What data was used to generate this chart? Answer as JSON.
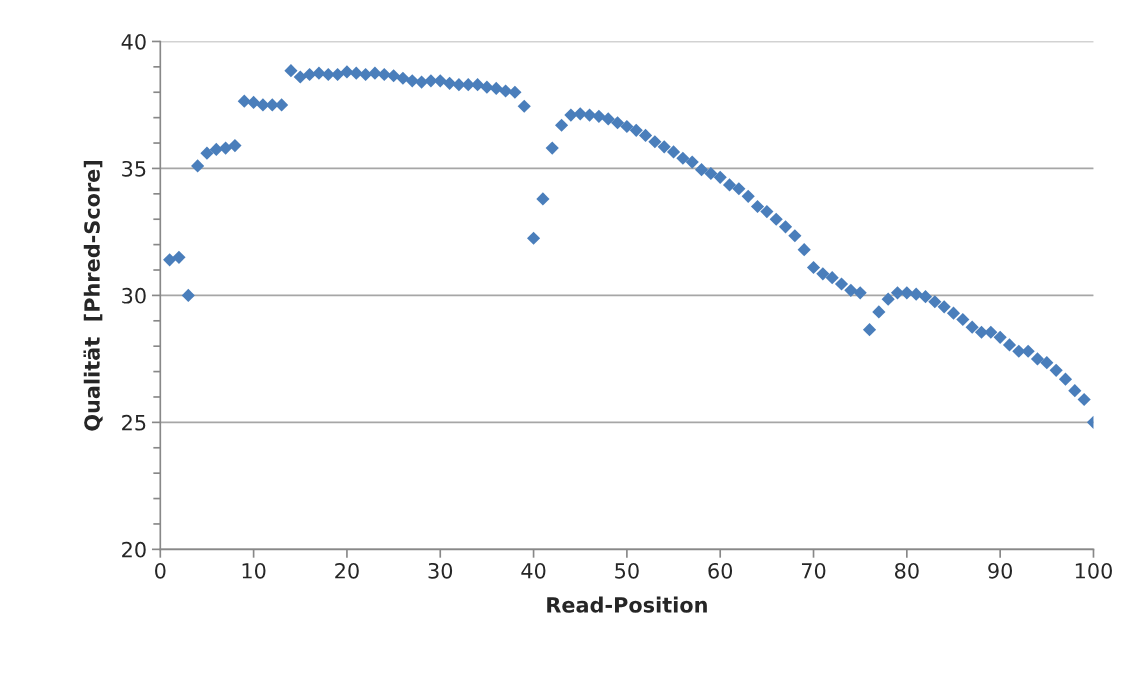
{
  "chart_data": {
    "type": "scatter",
    "xlabel": "Read-Position",
    "ylabel": "Qualität  [Phred-Score]",
    "x": [
      1,
      2,
      3,
      4,
      5,
      6,
      7,
      8,
      9,
      10,
      11,
      12,
      13,
      14,
      15,
      16,
      17,
      18,
      19,
      20,
      21,
      22,
      23,
      24,
      25,
      26,
      27,
      28,
      29,
      30,
      31,
      32,
      33,
      34,
      35,
      36,
      37,
      38,
      39,
      40,
      41,
      42,
      43,
      44,
      45,
      46,
      47,
      48,
      49,
      50,
      51,
      52,
      53,
      54,
      55,
      56,
      57,
      58,
      59,
      60,
      61,
      62,
      63,
      64,
      65,
      66,
      67,
      68,
      69,
      70,
      71,
      72,
      73,
      74,
      75,
      76,
      77,
      78,
      79,
      80,
      81,
      82,
      83,
      84,
      85,
      86,
      87,
      88,
      89,
      90,
      91,
      92,
      93,
      94,
      95,
      96,
      97,
      98,
      99,
      100
    ],
    "series": [
      {
        "color": "#4a7ebb",
        "values": [
          31.4,
          31.5,
          30.0,
          35.1,
          35.6,
          35.75,
          35.8,
          35.9,
          37.65,
          37.6,
          37.5,
          37.5,
          37.5,
          38.85,
          38.6,
          38.7,
          38.75,
          38.7,
          38.7,
          38.8,
          38.75,
          38.7,
          38.75,
          38.7,
          38.65,
          38.55,
          38.45,
          38.4,
          38.45,
          38.45,
          38.35,
          38.3,
          38.3,
          38.3,
          38.2,
          38.15,
          38.05,
          38.0,
          37.45,
          32.25,
          33.8,
          35.8,
          36.7,
          37.1,
          37.15,
          37.1,
          37.05,
          36.95,
          36.8,
          36.65,
          36.5,
          36.3,
          36.05,
          35.85,
          35.65,
          35.4,
          35.25,
          34.95,
          34.8,
          34.65,
          34.35,
          34.2,
          33.9,
          33.5,
          33.3,
          33.0,
          32.7,
          32.35,
          31.8,
          31.1,
          30.85,
          30.7,
          30.45,
          30.2,
          30.1,
          28.65,
          29.35,
          29.85,
          30.1,
          30.1,
          30.05,
          29.95,
          29.75,
          29.55,
          29.3,
          29.05,
          28.75,
          28.55,
          28.55,
          28.35,
          28.05,
          27.8,
          27.8,
          27.5,
          27.35,
          27.05,
          26.7,
          26.25,
          25.9,
          25.0
        ]
      }
    ],
    "xlim": [
      0,
      100
    ],
    "xticks": [
      0,
      10,
      20,
      30,
      40,
      50,
      60,
      70,
      80,
      90,
      100
    ],
    "ylim": [
      20,
      40
    ],
    "yticks": [
      20,
      {
        "value": 21,
        "label": null
      },
      {
        "value": 22,
        "label": null
      },
      {
        "value": 23,
        "label": null
      },
      {
        "value": 24,
        "label": null
      },
      25,
      {
        "value": 26,
        "label": null
      },
      {
        "value": 27,
        "label": null
      },
      {
        "value": 28,
        "label": null
      },
      {
        "value": 29,
        "label": null
      },
      30,
      {
        "value": 31,
        "label": null
      },
      {
        "value": 32,
        "label": null
      },
      {
        "value": 33,
        "label": null
      },
      {
        "value": 34,
        "label": null
      },
      35,
      {
        "value": 36,
        "label": null
      },
      {
        "value": 37,
        "label": null
      },
      {
        "value": 38,
        "label": null
      },
      {
        "value": 39,
        "label": null
      },
      40
    ],
    "grid": "y",
    "marker": "diamond"
  }
}
